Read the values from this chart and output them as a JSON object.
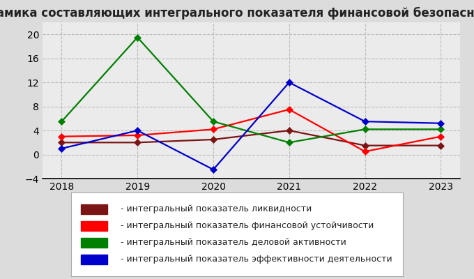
{
  "title": "Динамика составляющих интегрального показателя финансовой безопасности",
  "years": [
    2018,
    2019,
    2020,
    2021,
    2022,
    2023
  ],
  "series": {
    "liquidity": {
      "label": " - интегральный показатель ликвидности",
      "color": "#7B1414",
      "values": [
        2.0,
        2.0,
        2.5,
        4.0,
        1.5,
        1.5
      ]
    },
    "financial_stability": {
      "label": " - интегральный показатель финансовой устойчивости",
      "color": "#FF0000",
      "values": [
        3.0,
        3.2,
        4.2,
        7.5,
        0.5,
        3.0
      ]
    },
    "business_activity": {
      "label": " - интегральный показатель деловой активности",
      "color": "#008000",
      "values": [
        5.5,
        19.5,
        5.5,
        2.0,
        4.2,
        4.2
      ]
    },
    "efficiency": {
      "label": " - интегральный показатель эффективности деятельности",
      "color": "#0000CC",
      "values": [
        1.0,
        4.0,
        -2.5,
        12.0,
        5.5,
        5.2
      ]
    }
  },
  "ylim": [
    -4,
    22
  ],
  "yticks": [
    -4,
    0,
    4,
    8,
    12,
    16,
    20
  ],
  "fig_bg": "#DCDCDC",
  "plot_bg": "#EBEBEB",
  "grid_color": "#BBBBBB",
  "title_fontsize": 12,
  "tick_fontsize": 10,
  "legend_fontsize": 9
}
